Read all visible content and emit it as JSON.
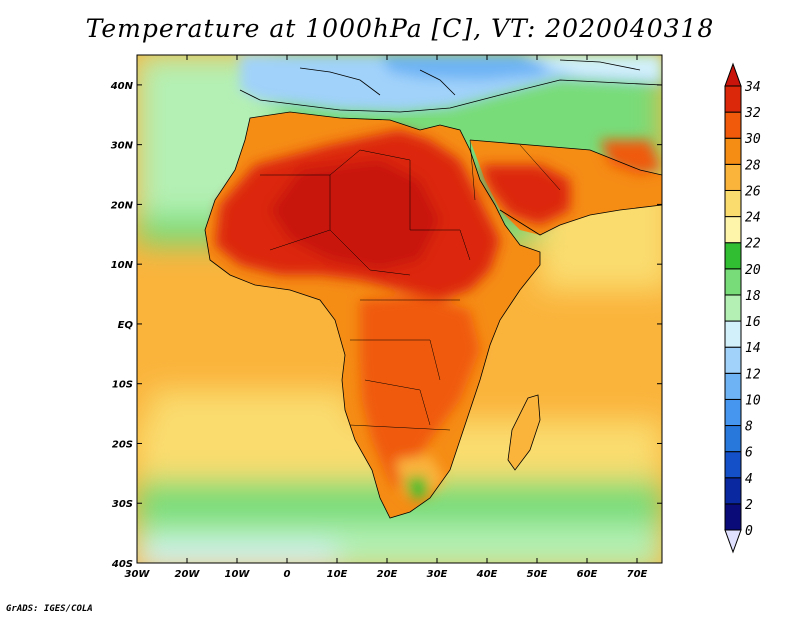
{
  "title": "Temperature at 1000hPa [C], VT: 2020040318",
  "credit": "GrADS: IGES/COLA",
  "map": {
    "projection": "latlon",
    "lon_range": [
      -30,
      75
    ],
    "lat_range": [
      -40,
      45
    ],
    "lon_ticks": [
      {
        "value": -30,
        "label": "30W"
      },
      {
        "value": -20,
        "label": "20W"
      },
      {
        "value": -10,
        "label": "10W"
      },
      {
        "value": 0,
        "label": "0"
      },
      {
        "value": 10,
        "label": "10E"
      },
      {
        "value": 20,
        "label": "20E"
      },
      {
        "value": 30,
        "label": "30E"
      },
      {
        "value": 40,
        "label": "40E"
      },
      {
        "value": 50,
        "label": "50E"
      },
      {
        "value": 60,
        "label": "60E"
      },
      {
        "value": 70,
        "label": "70E"
      }
    ],
    "lat_ticks": [
      {
        "value": 40,
        "label": "40N"
      },
      {
        "value": 30,
        "label": "30N"
      },
      {
        "value": 20,
        "label": "20N"
      },
      {
        "value": 10,
        "label": "10N"
      },
      {
        "value": 0,
        "label": "EQ"
      },
      {
        "value": -10,
        "label": "10S"
      },
      {
        "value": -20,
        "label": "20S"
      },
      {
        "value": -30,
        "label": "30S"
      },
      {
        "value": -40,
        "label": "40S"
      }
    ]
  },
  "colorbar": {
    "levels": [
      "0",
      "2",
      "4",
      "6",
      "8",
      "10",
      "12",
      "14",
      "16",
      "18",
      "20",
      "22",
      "24",
      "26",
      "28",
      "30",
      "32",
      "34"
    ],
    "colors": [
      "#e0e0ff",
      "#0a0a78",
      "#0a28a0",
      "#1450c8",
      "#2878dc",
      "#4696f0",
      "#6eb4f5",
      "#a0d2fa",
      "#d2f0fa",
      "#b4f0b4",
      "#78dc78",
      "#32be32",
      "#fff5aa",
      "#fadc6e",
      "#fab43c",
      "#f58c14",
      "#f05a0a",
      "#dc280a",
      "#c8140a"
    ]
  }
}
